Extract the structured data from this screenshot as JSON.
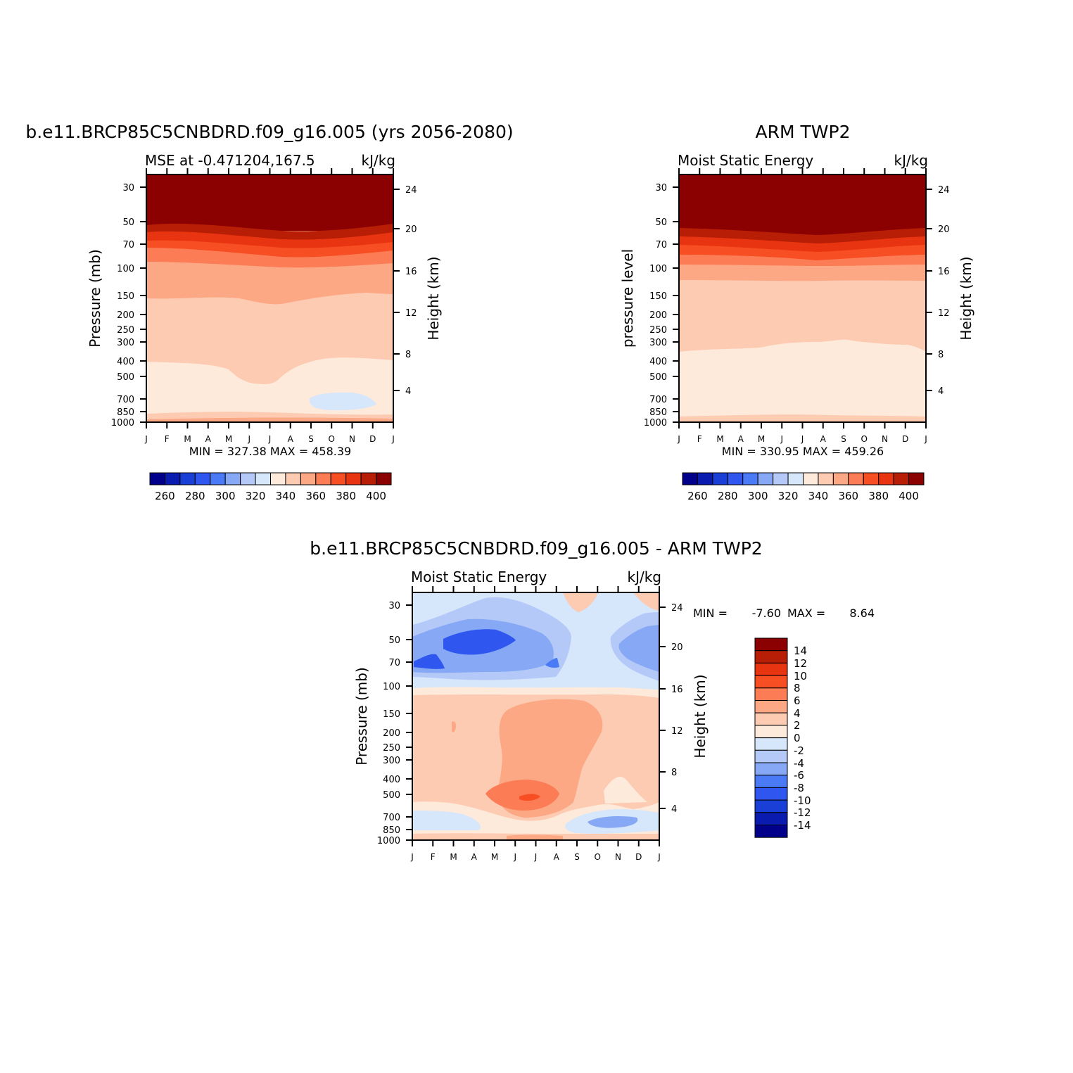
{
  "chart_data": [
    {
      "type": "heatmap",
      "main_title": "b.e11.BRCP85C5CNBDRD.f09_g16.005 (yrs 2056-2080)",
      "left_title": "MSE at -0.471204,167.5",
      "units": "kJ/kg",
      "ylabel": "Pressure (mb)",
      "ylabel_right": "Height (km)",
      "x_ticks": [
        "J",
        "F",
        "M",
        "A",
        "M",
        "J",
        "J",
        "A",
        "S",
        "O",
        "N",
        "D",
        "J"
      ],
      "y_ticks": [
        "30",
        "50",
        "70",
        "100",
        "150",
        "200",
        "250",
        "300",
        "400",
        "500",
        "700",
        "850",
        "1000"
      ],
      "y_ticks_right": [
        "24",
        "20",
        "16",
        "12",
        "8",
        "4"
      ],
      "min_max": "MIN = 327.38 MAX = 458.39",
      "colorbar_labels": [
        "260",
        "280",
        "300",
        "320",
        "340",
        "360",
        "380",
        "400"
      ]
    },
    {
      "type": "heatmap",
      "main_title": "ARM TWP2",
      "left_title": "Moist Static Energy",
      "units": "kJ/kg",
      "ylabel": "pressure level",
      "ylabel_right": "Height (km)",
      "x_ticks": [
        "J",
        "F",
        "M",
        "A",
        "M",
        "J",
        "J",
        "A",
        "S",
        "O",
        "N",
        "D",
        "J"
      ],
      "y_ticks": [
        "30",
        "50",
        "70",
        "100",
        "150",
        "200",
        "250",
        "300",
        "400",
        "500",
        "700",
        "850",
        "1000"
      ],
      "y_ticks_right": [
        "24",
        "20",
        "16",
        "12",
        "8",
        "4"
      ],
      "min_max": "MIN = 330.95 MAX = 459.26",
      "colorbar_labels": [
        "260",
        "280",
        "300",
        "320",
        "340",
        "360",
        "380",
        "400"
      ]
    },
    {
      "type": "heatmap",
      "main_title": "b.e11.BRCP85C5CNBDRD.f09_g16.005 - ARM TWP2",
      "left_title": "Moist Static Energy",
      "units": "kJ/kg",
      "ylabel": "Pressure (mb)",
      "ylabel_right": "Height (km)",
      "x_ticks": [
        "J",
        "F",
        "M",
        "A",
        "M",
        "J",
        "J",
        "A",
        "S",
        "O",
        "N",
        "D",
        "J"
      ],
      "y_ticks": [
        "30",
        "50",
        "70",
        "100",
        "150",
        "200",
        "250",
        "300",
        "400",
        "500",
        "700",
        "850",
        "1000"
      ],
      "y_ticks_right": [
        "24",
        "20",
        "16",
        "12",
        "8",
        "4"
      ],
      "min_label": "MIN =",
      "min_value": "-7.60",
      "max_label": "MAX =",
      "max_value": "8.64",
      "colorbar_labels": [
        "14",
        "12",
        "10",
        "8",
        "6",
        "4",
        "2",
        "0",
        "-2",
        "-4",
        "-6",
        "-8",
        "-10",
        "-12",
        "-14"
      ]
    }
  ],
  "colors": {
    "c01": "#00008b",
    "c02": "#0a1cb0",
    "c03": "#1a3fd6",
    "c04": "#2f57ef",
    "c05": "#4a7af5",
    "c06": "#86a8f5",
    "c07": "#b4c9f8",
    "c08": "#d6e6fb",
    "c09": "#feeadb",
    "c10": "#fdcab2",
    "c11": "#fca885",
    "c12": "#fb7c55",
    "c13": "#f74e24",
    "c14": "#e83410",
    "c15": "#b71e05",
    "c16": "#8b0000"
  }
}
